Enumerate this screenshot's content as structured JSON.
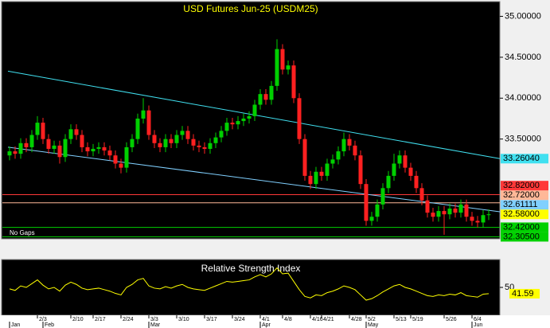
{
  "chart_data": {
    "type": "candlestick",
    "title": "USD  Futures  Jun-25  (USDM25)",
    "note": "No Gaps",
    "up_color": "#00d000",
    "down_color": "#ff2020",
    "open": [
      33.3,
      33.35,
      33.32,
      33.45,
      33.4,
      33.55,
      33.7,
      33.5,
      33.38,
      33.42,
      33.28,
      33.5,
      33.62,
      33.55,
      33.4,
      33.35,
      33.38,
      33.4,
      33.36,
      33.3,
      33.2,
      33.15,
      33.4,
      33.5,
      33.75,
      33.85,
      33.55,
      33.45,
      33.4,
      33.5,
      33.45,
      33.55,
      33.6,
      33.5,
      33.42,
      33.4,
      33.38,
      33.45,
      33.52,
      33.6,
      33.7,
      33.68,
      33.72,
      33.75,
      33.78,
      33.92,
      34.05,
      33.98,
      34.15,
      34.6,
      34.35,
      34.4,
      34.0,
      33.5,
      33.05,
      32.95,
      33.1,
      33.05,
      33.2,
      33.25,
      33.35,
      33.5,
      33.42,
      33.3,
      32.95,
      32.5,
      32.55,
      32.7,
      32.9,
      33.05,
      33.2,
      33.3,
      33.15,
      33.05,
      32.9,
      32.75,
      32.6,
      32.55,
      32.62,
      32.58,
      32.65,
      32.6,
      32.7,
      32.55,
      32.5,
      32.48,
      32.57
    ],
    "high": [
      33.41,
      33.41,
      33.51,
      33.51,
      33.61,
      33.78,
      33.76,
      33.56,
      33.48,
      33.48,
      33.56,
      33.68,
      33.68,
      33.61,
      33.46,
      33.44,
      33.46,
      33.46,
      33.42,
      33.36,
      33.26,
      33.46,
      33.56,
      33.81,
      34.0,
      33.91,
      33.61,
      33.51,
      33.56,
      33.56,
      33.61,
      33.66,
      33.66,
      33.56,
      33.48,
      33.46,
      33.51,
      33.58,
      33.66,
      33.76,
      33.76,
      33.78,
      33.81,
      33.84,
      33.98,
      34.11,
      34.11,
      34.21,
      34.72,
      34.66,
      34.46,
      34.46,
      34.06,
      33.56,
      33.11,
      33.16,
      33.16,
      33.26,
      33.31,
      33.41,
      33.58,
      33.56,
      33.48,
      33.36,
      33.01,
      32.61,
      32.76,
      32.96,
      33.11,
      33.32,
      33.36,
      33.36,
      33.21,
      33.11,
      32.96,
      32.81,
      32.66,
      32.68,
      32.68,
      32.71,
      32.71,
      32.76,
      32.76,
      32.61,
      32.56,
      32.63,
      32.64
    ],
    "low": [
      33.24,
      33.26,
      33.26,
      33.34,
      33.34,
      33.49,
      33.44,
      33.32,
      33.32,
      33.2,
      33.22,
      33.44,
      33.49,
      33.34,
      33.29,
      33.29,
      33.32,
      33.3,
      33.24,
      33.14,
      33.08,
      33.09,
      33.34,
      33.44,
      33.69,
      33.49,
      33.39,
      33.34,
      33.34,
      33.39,
      33.39,
      33.49,
      33.44,
      33.36,
      33.34,
      33.32,
      33.32,
      33.39,
      33.46,
      33.54,
      33.62,
      33.62,
      33.66,
      33.69,
      33.72,
      33.86,
      33.92,
      33.92,
      34.09,
      34.29,
      34.29,
      33.94,
      33.44,
      32.99,
      32.89,
      32.89,
      32.99,
      32.99,
      33.14,
      33.19,
      33.29,
      33.36,
      33.24,
      32.89,
      32.44,
      32.44,
      32.49,
      32.64,
      32.84,
      32.99,
      33.14,
      33.09,
      32.99,
      32.84,
      32.69,
      32.54,
      32.49,
      32.49,
      32.33,
      32.52,
      32.54,
      32.54,
      32.49,
      32.44,
      32.42,
      32.42,
      32.51
    ],
    "close": [
      33.35,
      33.32,
      33.45,
      33.4,
      33.55,
      33.7,
      33.5,
      33.38,
      33.42,
      33.28,
      33.5,
      33.62,
      33.55,
      33.4,
      33.35,
      33.38,
      33.4,
      33.36,
      33.3,
      33.2,
      33.15,
      33.4,
      33.5,
      33.75,
      33.85,
      33.55,
      33.45,
      33.4,
      33.5,
      33.45,
      33.55,
      33.6,
      33.5,
      33.42,
      33.4,
      33.38,
      33.45,
      33.52,
      33.6,
      33.7,
      33.68,
      33.72,
      33.75,
      33.78,
      33.92,
      34.05,
      33.98,
      34.15,
      34.6,
      34.35,
      34.4,
      34.0,
      33.5,
      33.05,
      32.95,
      33.1,
      33.05,
      33.2,
      33.25,
      33.35,
      33.5,
      33.42,
      33.3,
      32.95,
      32.5,
      32.55,
      32.7,
      32.9,
      33.05,
      33.2,
      33.3,
      33.15,
      33.05,
      32.9,
      32.75,
      32.6,
      32.55,
      32.62,
      32.58,
      32.65,
      32.6,
      32.7,
      32.55,
      32.5,
      32.48,
      32.57,
      32.58
    ],
    "xticks": [
      {
        "value": 5,
        "label": "2/3"
      },
      {
        "value": 11,
        "label": "2/10"
      },
      {
        "value": 15,
        "label": "2/17"
      },
      {
        "value": 20,
        "label": "2/24"
      },
      {
        "value": 25,
        "label": "3/3"
      },
      {
        "value": 30,
        "label": "3/10"
      },
      {
        "value": 35,
        "label": "3/17"
      },
      {
        "value": 40,
        "label": "3/24"
      },
      {
        "value": 45,
        "label": "4/1"
      },
      {
        "value": 49,
        "label": "4/8"
      },
      {
        "value": 54,
        "label": "4/16"
      },
      {
        "value": 56,
        "label": "4/21"
      },
      {
        "value": 61,
        "label": "4/28"
      },
      {
        "value": 64,
        "label": "5/2"
      },
      {
        "value": 69,
        "label": "5/13"
      },
      {
        "value": 72,
        "label": "5/19"
      },
      {
        "value": 78,
        "label": "5/26"
      },
      {
        "value": 83,
        "label": "6/4"
      }
    ],
    "months": [
      {
        "value": 0,
        "label": "Jan"
      },
      {
        "value": 6,
        "label": "Feb"
      },
      {
        "value": 25,
        "label": "Mar"
      },
      {
        "value": 45,
        "label": "Apr"
      },
      {
        "value": 64,
        "label": "May"
      },
      {
        "value": 83,
        "label": "Jun"
      }
    ],
    "ylim": [
      32.28,
      35.2
    ],
    "yticks": [
      {
        "value": 35,
        "label": "35.00000"
      },
      {
        "value": 34.5,
        "label": "34.50000"
      },
      {
        "value": 34,
        "label": "34.00000"
      },
      {
        "value": 33.5,
        "label": "33.50000"
      }
    ],
    "levels": [
      {
        "value": 32.82,
        "label": "32.82000",
        "color": "#ff3838"
      },
      {
        "value": 32.72,
        "label": "32.72000",
        "color": "#ffb898"
      },
      {
        "value": 32.42,
        "label": "32.42000",
        "color": "#00d000"
      },
      {
        "value": 32.305,
        "label": "32.30500",
        "color": "#00d000"
      }
    ],
    "trendlines": [
      {
        "start": 34.33,
        "end": 33.2604,
        "end_label": "33.26040",
        "color": "#40e0f0"
      },
      {
        "start": 33.4,
        "end": 32.61111,
        "end_label": "32.61111",
        "color": "#80d0ff"
      }
    ],
    "last_price": {
      "value": 32.58,
      "label": "32.58000",
      "color": "#ffff00"
    },
    "rsi": {
      "title": "Relative Strength Index",
      "color": "#ffff00",
      "ylim": [
        15,
        85
      ],
      "yticks": [
        50
      ],
      "values": [
        48,
        46,
        52,
        50,
        55,
        60,
        53,
        48,
        50,
        45,
        53,
        57,
        54,
        49,
        47,
        48,
        49,
        47,
        45,
        42,
        40,
        50,
        54,
        60,
        62,
        52,
        49,
        48,
        51,
        49,
        52,
        54,
        50,
        48,
        47,
        46,
        49,
        52,
        55,
        58,
        57,
        58,
        59,
        60,
        64,
        67,
        64,
        68,
        76,
        68,
        69,
        58,
        47,
        38,
        36,
        40,
        39,
        43,
        45,
        48,
        52,
        50,
        47,
        40,
        33,
        35,
        39,
        44,
        48,
        52,
        54,
        50,
        48,
        45,
        42,
        39,
        38,
        40,
        39,
        41,
        40,
        43,
        39,
        38,
        37,
        41,
        41.59
      ]
    }
  }
}
